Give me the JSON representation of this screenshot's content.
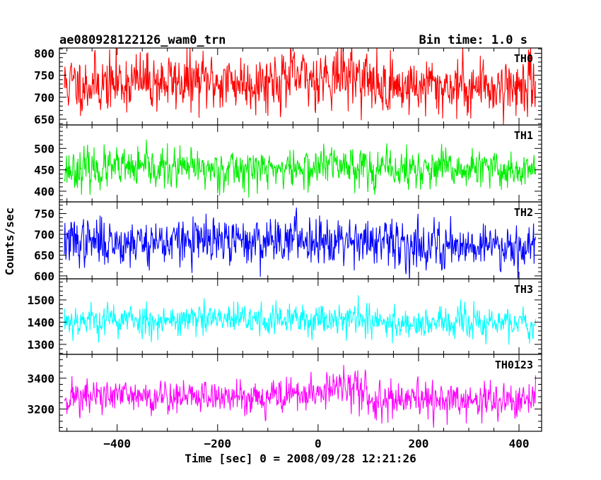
{
  "header": {
    "title": "ae080928122126_wam0_trn",
    "bin_time": "Bin time: 1.0 s"
  },
  "chart_data": {
    "type": "line",
    "xlabel": "Time [sec] 0 = 2008/09/28 12:21:26",
    "ylabel": "Counts/sec",
    "xlim": [
      -515,
      445
    ],
    "x_range": [
      -505,
      433
    ],
    "x_ticks": [
      -400,
      -200,
      0,
      200,
      400
    ],
    "panels": [
      {
        "label": "TH0",
        "color": "#ff0000",
        "ylim": [
          637,
          812
        ],
        "yticks": [
          650,
          700,
          750,
          800
        ],
        "mean": 735,
        "spread": 40,
        "seed": 11,
        "segments": [
          {
            "x0": -505,
            "x1": -400,
            "mean": 730
          },
          {
            "x0": -400,
            "x1": -100,
            "mean": 735
          },
          {
            "x0": -100,
            "x1": 0,
            "mean": 742
          },
          {
            "x0": 0,
            "x1": 100,
            "mean": 750
          },
          {
            "x0": 100,
            "x1": 433,
            "mean": 725
          }
        ]
      },
      {
        "label": "TH1",
        "color": "#00ee00",
        "ylim": [
          375,
          555
        ],
        "yticks": [
          400,
          450,
          500
        ],
        "mean": 452,
        "spread": 28,
        "seed": 23,
        "segments": [
          {
            "x0": -505,
            "x1": 0,
            "mean": 452
          },
          {
            "x0": 0,
            "x1": 100,
            "mean": 462
          },
          {
            "x0": 100,
            "x1": 433,
            "mean": 450
          }
        ]
      },
      {
        "label": "TH2",
        "color": "#0000ff",
        "ylim": [
          593,
          778
        ],
        "yticks": [
          600,
          650,
          700,
          750
        ],
        "mean": 680,
        "spread": 34,
        "seed": 37,
        "segments": [
          {
            "x0": -505,
            "x1": -100,
            "mean": 682
          },
          {
            "x0": -100,
            "x1": 100,
            "mean": 690
          },
          {
            "x0": 100,
            "x1": 433,
            "mean": 675
          }
        ]
      },
      {
        "label": "TH3",
        "color": "#00ffff",
        "ylim": [
          1255,
          1595
        ],
        "yticks": [
          1300,
          1400,
          1500
        ],
        "mean": 1405,
        "spread": 45,
        "seed": 53,
        "segments": [
          {
            "x0": -505,
            "x1": 0,
            "mean": 1410
          },
          {
            "x0": 0,
            "x1": 100,
            "mean": 1420
          },
          {
            "x0": 100,
            "x1": 433,
            "mean": 1395
          }
        ]
      },
      {
        "label": "TH0123",
        "color": "#ff00ff",
        "ylim": [
          3055,
          3555
        ],
        "yticks": [
          3200,
          3400
        ],
        "mean": 3270,
        "spread": 70,
        "seed": 71,
        "segments": [
          {
            "x0": -505,
            "x1": -100,
            "mean": 3280
          },
          {
            "x0": -100,
            "x1": 0,
            "mean": 3290
          },
          {
            "x0": 0,
            "x1": 100,
            "mean": 3330
          },
          {
            "x0": 100,
            "x1": 433,
            "mean": 3250
          }
        ]
      }
    ]
  }
}
